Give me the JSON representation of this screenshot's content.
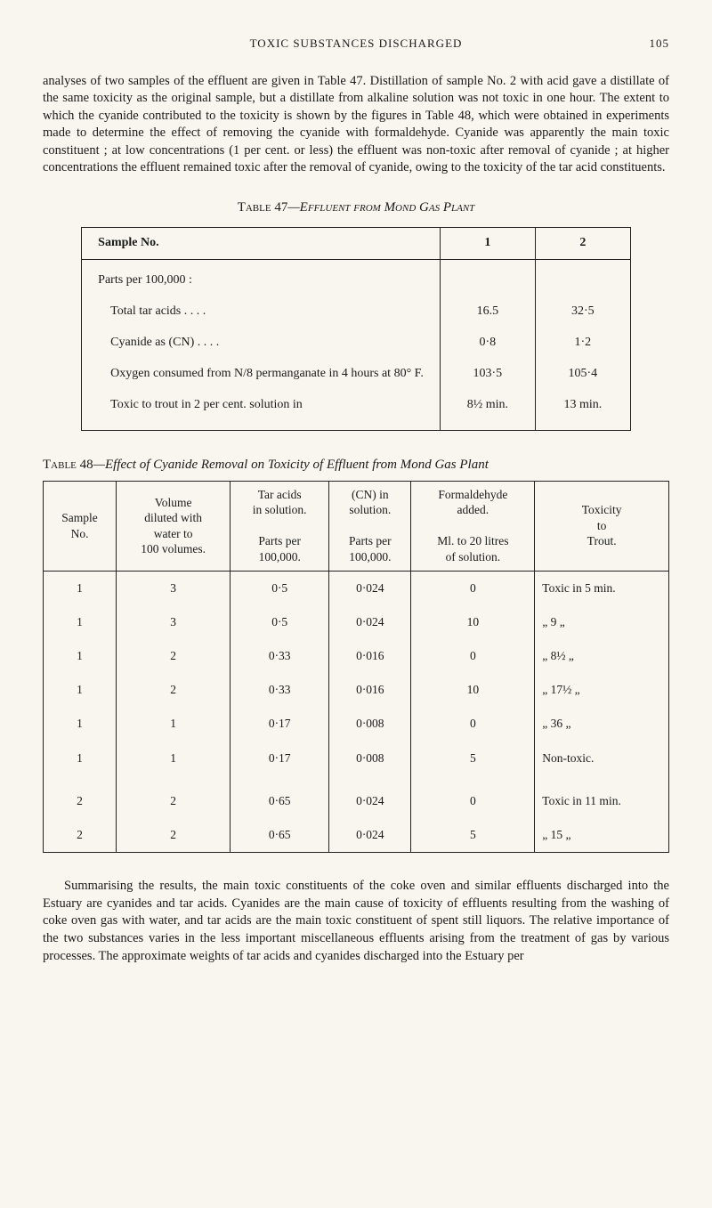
{
  "header": {
    "running_title": "TOXIC SUBSTANCES DISCHARGED",
    "page_number": "105"
  },
  "para1": "analyses of two samples of the effluent are given in Table 47. Distillation of sample No. 2 with acid gave a distillate of the same toxicity as the original sample, but a distillate from alkaline solution was not toxic in one hour. The extent to which the cyanide contributed to the toxicity is shown by the figures in Table 48, which were obtained in experiments made to determine the effect of removing the cyanide with formaldehyde. Cyanide was apparently the main toxic constituent ; at low concentrations (1 per cent. or less) the effluent was non-toxic after removal of cyanide ; at higher concentrations the effluent remained toxic after the removal of cyanide, owing to the toxicity of the tar acid constituents.",
  "table47": {
    "caption_label": "Table 47",
    "caption_rest": "—Effluent from Mond Gas Plant",
    "col_header": "Sample No.",
    "cols": [
      "1",
      "2"
    ],
    "section_label": "Parts per 100,000 :",
    "rows": [
      {
        "label": "Total tar acids    . .    . .",
        "c1": "16.5",
        "c2": "32·5"
      },
      {
        "label": "Cyanide as (CN)    . .    . .",
        "c1": "0·8",
        "c2": "1·2"
      },
      {
        "label": "Oxygen consumed from N/8 permanganate in 4 hours at 80° F.",
        "c1": "103·5",
        "c2": "105·4"
      },
      {
        "label": "Toxic to trout in 2 per cent. solution in",
        "c1": "8½ min.",
        "c2": "13 min."
      }
    ]
  },
  "table48": {
    "caption_label": "Table 48",
    "caption_rest": "—Effect of Cyanide Removal on Toxicity of Effluent from Mond Gas Plant",
    "headers": {
      "sample_no": "Sample\nNo.",
      "volume": "Volume\ndiluted with\nwater to\n100 volumes.",
      "tar_acids": "Tar acids\nin solution.\n\nParts per\n100,000.",
      "cn": "(CN) in\nsolution.\n\nParts per\n100,000.",
      "formaldehyde": "Formaldehyde\nadded.\n\nMl. to 20 litres\nof solution.",
      "toxicity": "Toxicity\nto\nTrout."
    },
    "rows": [
      {
        "n": "1",
        "v": "3",
        "t": "0·5",
        "c": "0·024",
        "f": "0",
        "x": "Toxic in 5 min."
      },
      {
        "n": "1",
        "v": "3",
        "t": "0·5",
        "c": "0·024",
        "f": "10",
        "x": "„   9  „"
      },
      {
        "n": "1",
        "v": "2",
        "t": "0·33",
        "c": "0·016",
        "f": "0",
        "x": "„   8½  „"
      },
      {
        "n": "1",
        "v": "2",
        "t": "0·33",
        "c": "0·016",
        "f": "10",
        "x": "„   17½  „"
      },
      {
        "n": "1",
        "v": "1",
        "t": "0·17",
        "c": "0·008",
        "f": "0",
        "x": "„   36  „"
      },
      {
        "n": "1",
        "v": "1",
        "t": "0·17",
        "c": "0·008",
        "f": "5",
        "x": "Non-toxic."
      },
      {
        "n": "2",
        "v": "2",
        "t": "0·65",
        "c": "0·024",
        "f": "0",
        "x": "Toxic in 11 min.",
        "gap": true
      },
      {
        "n": "2",
        "v": "2",
        "t": "0·65",
        "c": "0·024",
        "f": "5",
        "x": "„   15  „"
      }
    ]
  },
  "para2": "Summarising the results, the main toxic constituents of the coke oven and similar effluents discharged into the Estuary are cyanides and tar acids. Cyanides are the main cause of toxicity of effluents resulting from the washing of coke oven gas with water, and tar acids are the main toxic constituent of spent still liquors. The relative importance of the two substances varies in the less important miscellaneous effluents arising from the treatment of gas by various processes. The approximate weights of tar acids and cyanides discharged into the Estuary per"
}
